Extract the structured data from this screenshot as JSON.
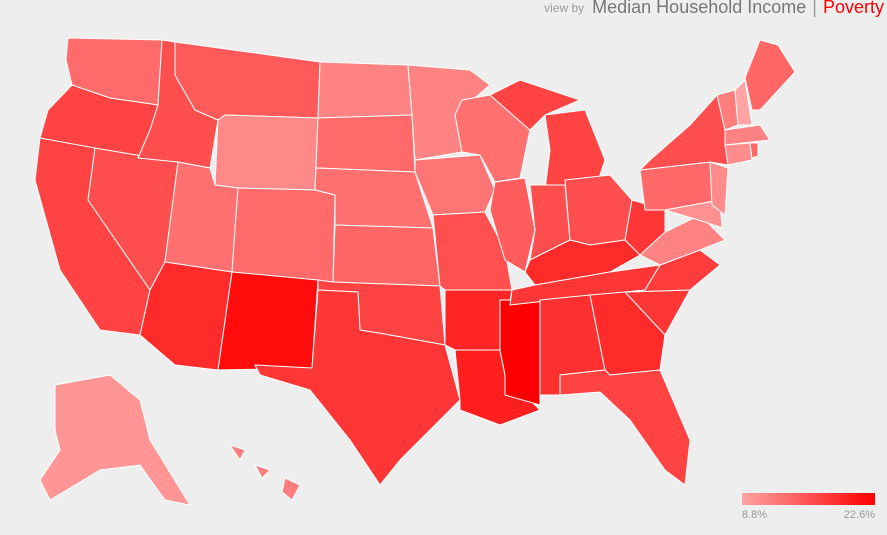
{
  "header": {
    "prefix": "view by",
    "option_1": "Median Household Income",
    "separator": "|",
    "option_2": "Poverty"
  },
  "legend": {
    "min": {
      "value": 8.8,
      "label": "8.8%"
    },
    "max": {
      "value": 22.6,
      "label": "22.6%"
    },
    "colors": [
      "#ffa3a3",
      "#ff0000"
    ]
  },
  "regions": [
    13.5,
    17,
    17,
    16,
    16,
    15,
    11,
    13,
    19,
    13.5,
    21.5,
    11.5,
    13.5,
    13,
    14,
    17,
    18,
    11.5,
    12.7,
    15.8,
    19.5,
    20,
    13,
    14.7,
    22.6,
    17,
    16,
    16,
    19,
    18,
    18.5,
    19,
    17,
    18,
    17.5,
    11.5,
    18,
    13.7,
    16,
    10.3,
    10.8,
    12,
    8.8,
    14,
    11.5,
    10.7,
    14,
    10,
    12
  ]
}
